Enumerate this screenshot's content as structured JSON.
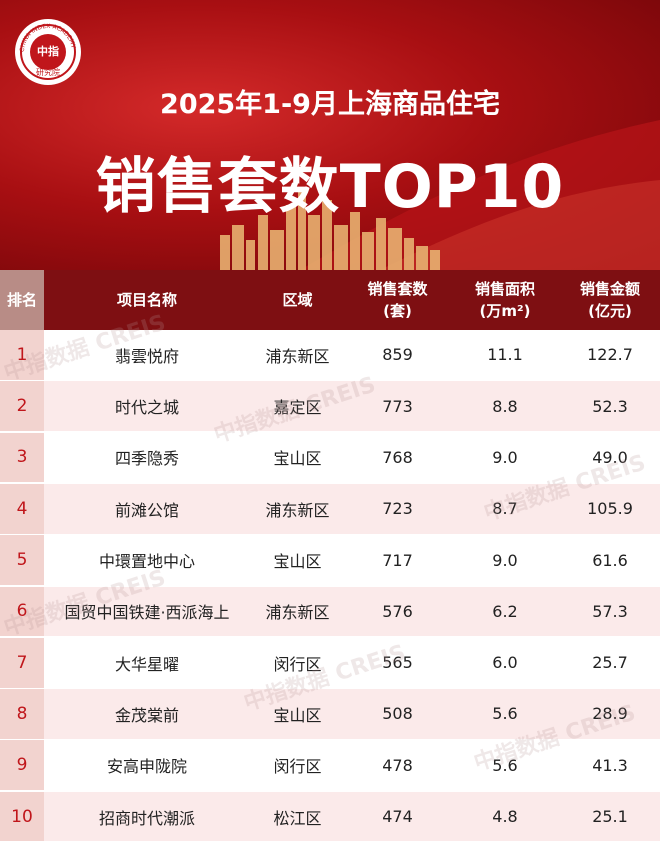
{
  "logo": {
    "top": "CHINA INDEX ACADEMY",
    "center": "中指",
    "bottom": "研究院"
  },
  "header": {
    "subtitle": "2025年1-9月上海商品住宅",
    "title": "销售套数TOP10"
  },
  "table": {
    "columns": [
      {
        "name": "排名"
      },
      {
        "name": "项目名称"
      },
      {
        "name": "区域"
      },
      {
        "name": "销售套数",
        "unit": "(套)"
      },
      {
        "name": "销售面积",
        "unit": "(万m²)"
      },
      {
        "name": "销售金额",
        "unit": "(亿元)"
      }
    ],
    "rows": [
      [
        "1",
        "翡雲悦府",
        "浦东新区",
        "859",
        "11.1",
        "122.7"
      ],
      [
        "2",
        "时代之城",
        "嘉定区",
        "773",
        "8.8",
        "52.3"
      ],
      [
        "3",
        "四季隐秀",
        "宝山区",
        "768",
        "9.0",
        "49.0"
      ],
      [
        "4",
        "前滩公馆",
        "浦东新区",
        "723",
        "8.7",
        "105.9"
      ],
      [
        "5",
        "中環置地中心",
        "宝山区",
        "717",
        "9.0",
        "61.6"
      ],
      [
        "6",
        "国贸中国铁建·西派海上",
        "浦东新区",
        "576",
        "6.2",
        "57.3"
      ],
      [
        "7",
        "大华星曜",
        "闵行区",
        "565",
        "6.0",
        "25.7"
      ],
      [
        "8",
        "金茂棠前",
        "宝山区",
        "508",
        "5.6",
        "28.9"
      ],
      [
        "9",
        "安高申陇院",
        "闵行区",
        "478",
        "5.6",
        "41.3"
      ],
      [
        "10",
        "招商时代潮派",
        "松江区",
        "474",
        "4.8",
        "25.1"
      ]
    ]
  },
  "watermark": {
    "cn": "中指数据",
    "en": "CREIS"
  }
}
